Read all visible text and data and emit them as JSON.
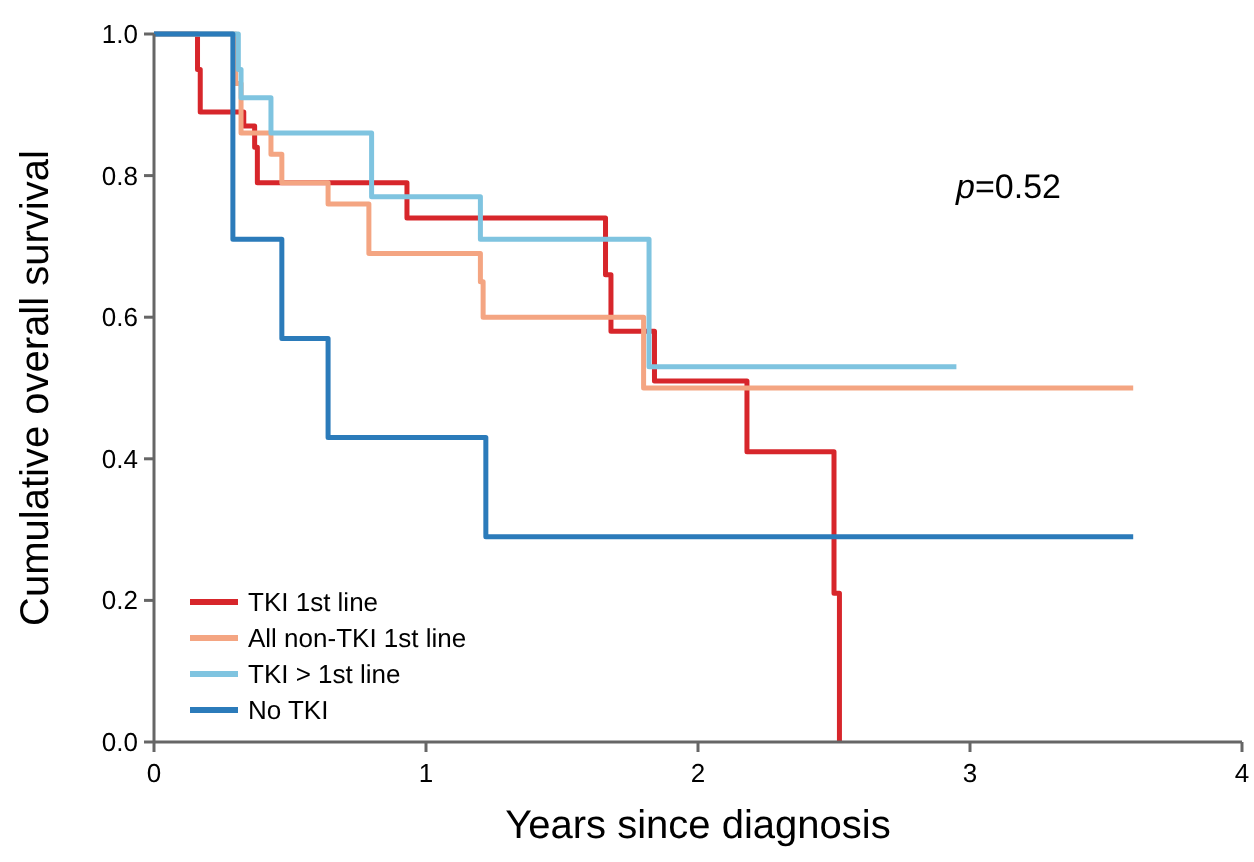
{
  "chart_data": {
    "type": "step",
    "xlabel": "Years since diagnosis",
    "ylabel": "Cumulative overall survival",
    "annotations": [
      "p=0.52"
    ],
    "xlim": [
      0,
      4
    ],
    "xticks": [
      0,
      1,
      2,
      3,
      4
    ],
    "ylim": [
      0,
      1
    ],
    "yticks": [
      {
        "value": 0,
        "label": "0.0"
      },
      {
        "value": 0.2,
        "label": "0.2"
      },
      {
        "value": 0.4,
        "label": "0.4"
      },
      {
        "value": 0.6,
        "label": "0.6"
      },
      {
        "value": 0.8,
        "label": "0.8"
      },
      {
        "value": 1,
        "label": "1.0"
      }
    ],
    "grid": false,
    "legend": "bottom left",
    "marker": "none",
    "line_style": "solid",
    "series": [
      {
        "name": "TKI 1st line",
        "color": "#d7262b",
        "x": [
          0,
          0.16,
          0.17,
          0.33,
          0.37,
          0.38,
          0.93,
          1.66,
          1.68,
          1.84,
          2.18,
          2.5,
          2.52
        ],
        "values": [
          1,
          0.95,
          0.89,
          0.87,
          0.84,
          0.79,
          0.74,
          0.66,
          0.58,
          0.51,
          0.41,
          0.21,
          0
        ]
      },
      {
        "name": "All non-TKI 1st line",
        "color": "#f4a582",
        "x": [
          0,
          0.3,
          0.32,
          0.43,
          0.47,
          0.64,
          0.79,
          1.2,
          1.21,
          1.8,
          3.6
        ],
        "values": [
          1,
          0.93,
          0.86,
          0.83,
          0.79,
          0.76,
          0.69,
          0.65,
          0.6,
          0.5,
          0.5
        ]
      },
      {
        "name": "TKI > 1st line",
        "color": "#7fc4e0",
        "x": [
          0,
          0.31,
          0.32,
          0.43,
          0.8,
          1.2,
          1.82,
          2.95
        ],
        "values": [
          1,
          0.95,
          0.91,
          0.86,
          0.77,
          0.71,
          0.53,
          0.53
        ]
      },
      {
        "name": "No TKI",
        "color": "#2b7bba",
        "x": [
          0,
          0.29,
          0.47,
          0.64,
          1.22,
          3.6
        ],
        "values": [
          1,
          0.71,
          0.57,
          0.43,
          0.29,
          0.29
        ]
      }
    ]
  }
}
